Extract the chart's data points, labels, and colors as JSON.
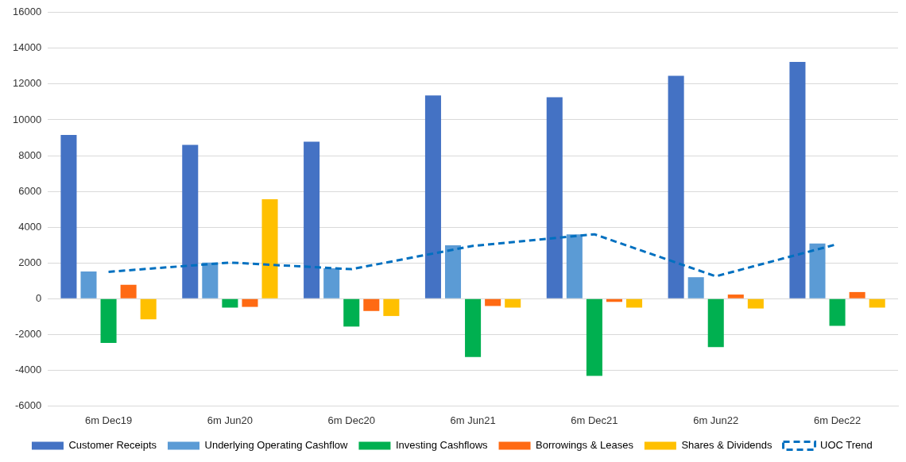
{
  "chart_data": {
    "type": "bar",
    "categories": [
      "6m Dec19",
      "6m Jun20",
      "6m Dec20",
      "6m Jun21",
      "6m Dec21",
      "6m Jun22",
      "6m Dec22"
    ],
    "series": [
      {
        "name": "Customer Receipts",
        "color": "#4472c4",
        "values": [
          9150,
          8600,
          8780,
          11360,
          11260,
          12460,
          13240
        ]
      },
      {
        "name": "Underlying Operating Cashflow",
        "color": "#5b9bd5",
        "values": [
          1520,
          2020,
          1700,
          2990,
          3590,
          1200,
          3080
        ]
      },
      {
        "name": "Investing Cashflows",
        "color": "#00b050",
        "values": [
          -2480,
          -500,
          -1560,
          -3260,
          -4320,
          -2710,
          -1520
        ]
      },
      {
        "name": "Borrowings & Leases",
        "color": "#ff6a13",
        "values": [
          780,
          -460,
          -690,
          -410,
          -180,
          230,
          370
        ]
      },
      {
        "name": "Shares & Dividends",
        "color": "#ffc000",
        "values": [
          -1150,
          5560,
          -970,
          -500,
          -500,
          -550,
          -500
        ]
      },
      {
        "name": "UOC Trend",
        "type": "line",
        "color": "#0070c0",
        "line_style": "dashed",
        "marker": "none",
        "values": [
          1500,
          2020,
          1650,
          2950,
          3600,
          1250,
          3050
        ]
      }
    ],
    "ylim": [
      -6000,
      16000
    ],
    "yticks": [
      -6000,
      -4000,
      -2000,
      0,
      2000,
      4000,
      6000,
      8000,
      10000,
      12000,
      14000,
      16000
    ],
    "grid": "y",
    "legend": "bottom"
  }
}
